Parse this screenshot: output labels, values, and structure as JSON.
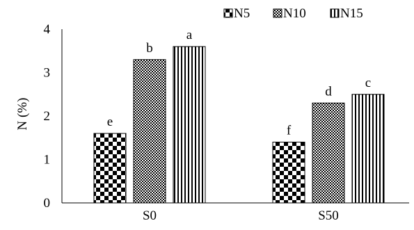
{
  "chart_data": {
    "type": "bar",
    "title": "",
    "xlabel": "",
    "ylabel": "N (%)",
    "ylim": [
      0,
      4
    ],
    "yticks": [
      "0",
      "1",
      "2",
      "3",
      "4"
    ],
    "grid": false,
    "legend_position": "top-right",
    "categories": [
      "S0",
      "S50"
    ],
    "series": [
      {
        "name": "N5",
        "values": [
          1.6,
          1.4
        ],
        "labels": [
          "e",
          "f"
        ],
        "pattern": "checker"
      },
      {
        "name": "N10",
        "values": [
          3.3,
          2.3
        ],
        "labels": [
          "b",
          "d"
        ],
        "pattern": "fine-checker"
      },
      {
        "name": "N15",
        "values": [
          3.6,
          2.5
        ],
        "labels": [
          "a",
          "c"
        ],
        "pattern": "vertical-stripes"
      }
    ],
    "colors": {
      "ink": "#000000",
      "background": "#ffffff"
    }
  }
}
